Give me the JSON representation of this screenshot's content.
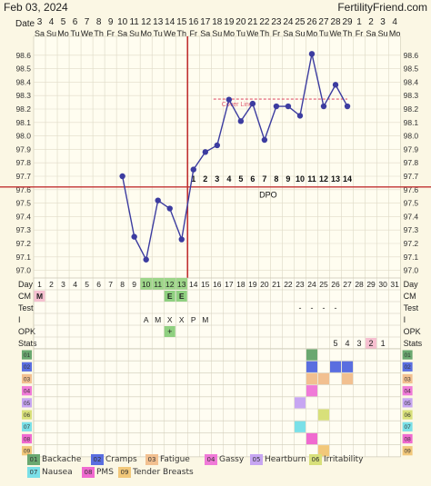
{
  "header": {
    "date": "Feb 03, 2024",
    "site": "FertilityFriend.com"
  },
  "labels": {
    "date_label": "Date",
    "dpo_label": "DPO",
    "cover_line_label": "Cover Line",
    "row_day": "Day",
    "row_cm": "CM",
    "row_test": "Test",
    "row_i": "I",
    "row_opk": "OPK",
    "row_stats": "Stats"
  },
  "colors": {
    "temp_line": "#3c3ca0",
    "ovulation_line": "#c03030",
    "cover_line": "#e05a70",
    "grid_bg": "#fffdf0",
    "header_bg": "#fbf7e4"
  },
  "chart_data": {
    "type": "line",
    "x_dates": [
      3,
      4,
      5,
      6,
      7,
      8,
      9,
      10,
      11,
      12,
      13,
      14,
      15,
      16,
      17,
      18,
      19,
      20,
      21,
      22,
      23,
      24,
      25,
      26,
      27,
      28,
      29,
      1,
      2,
      3,
      4
    ],
    "x_weekdays": [
      "Sa",
      "Su",
      "Mo",
      "Tu",
      "We",
      "Th",
      "Fr",
      "Sa",
      "Su",
      "Mo",
      "Tu",
      "We",
      "Th",
      "Fr",
      "Sa",
      "Su",
      "Mo",
      "Tu",
      "We",
      "Th",
      "Fr",
      "Sa",
      "Su",
      "Mo",
      "Tu",
      "We",
      "Th",
      "Fr",
      "Sa",
      "Su",
      "Mo"
    ],
    "cycle_days": [
      1,
      2,
      3,
      4,
      5,
      6,
      7,
      8,
      9,
      10,
      11,
      12,
      13,
      14,
      15,
      16,
      17,
      18,
      19,
      20,
      21,
      22,
      23,
      24,
      25,
      26,
      27,
      28,
      29,
      30,
      31
    ],
    "y_ticks": [
      97.0,
      97.1,
      97.2,
      97.3,
      97.4,
      97.5,
      97.6,
      97.7,
      97.8,
      97.9,
      98.0,
      98.1,
      98.2,
      98.3,
      98.4,
      98.5,
      98.6
    ],
    "ylim": [
      96.95,
      98.7
    ],
    "temperatures": [
      {
        "day": 8,
        "temp": 97.7
      },
      {
        "day": 9,
        "temp": 97.25
      },
      {
        "day": 10,
        "temp": 97.08
      },
      {
        "day": 11,
        "temp": 97.52
      },
      {
        "day": 12,
        "temp": 97.46
      },
      {
        "day": 13,
        "temp": 97.23
      },
      {
        "day": 14,
        "temp": 97.75
      },
      {
        "day": 15,
        "temp": 97.88
      },
      {
        "day": 16,
        "temp": 97.93
      },
      {
        "day": 17,
        "temp": 98.27
      },
      {
        "day": 18,
        "temp": 98.11
      },
      {
        "day": 19,
        "temp": 98.24
      },
      {
        "day": 20,
        "temp": 97.97
      },
      {
        "day": 21,
        "temp": 98.22
      },
      {
        "day": 22,
        "temp": 98.22
      },
      {
        "day": 23,
        "temp": 98.15
      },
      {
        "day": 24,
        "temp": 98.61
      },
      {
        "day": 25,
        "temp": 98.22
      },
      {
        "day": 26,
        "temp": 98.38
      },
      {
        "day": 27,
        "temp": 98.22
      }
    ],
    "ovulation_day": 13,
    "coverline_temp": 97.62,
    "coverline_short": {
      "from_day": 16,
      "to_day": 27,
      "temp": 98.22
    },
    "dpo_labels": [
      {
        "day": 14,
        "label": "1"
      },
      {
        "day": 15,
        "label": "2"
      },
      {
        "day": 16,
        "label": "3"
      },
      {
        "day": 17,
        "label": "4"
      },
      {
        "day": 18,
        "label": "5"
      },
      {
        "day": 19,
        "label": "6"
      },
      {
        "day": 20,
        "label": "7"
      },
      {
        "day": 21,
        "label": "8"
      },
      {
        "day": 22,
        "label": "9"
      },
      {
        "day": 23,
        "label": "10"
      },
      {
        "day": 24,
        "label": "11"
      },
      {
        "day": 25,
        "label": "12"
      },
      {
        "day": 26,
        "label": "13"
      },
      {
        "day": 27,
        "label": "14"
      }
    ],
    "green_days": [
      10,
      11,
      12,
      13
    ],
    "cm": [
      {
        "day": 1,
        "label": "M",
        "style": "pink"
      },
      {
        "day": 12,
        "label": "E",
        "style": "green"
      },
      {
        "day": 13,
        "label": "E",
        "style": "green"
      }
    ],
    "test": [
      {
        "day": 23,
        "label": "-"
      },
      {
        "day": 24,
        "label": "-"
      },
      {
        "day": 25,
        "label": "-"
      },
      {
        "day": 26,
        "label": "-"
      }
    ],
    "intercourse": [
      {
        "day": 10,
        "label": "A"
      },
      {
        "day": 11,
        "label": "M"
      },
      {
        "day": 12,
        "label": "X"
      },
      {
        "day": 13,
        "label": "X"
      },
      {
        "day": 14,
        "label": "P"
      },
      {
        "day": 15,
        "label": "M"
      }
    ],
    "opk": [
      {
        "day": 12,
        "label": "+"
      }
    ],
    "stats": [
      {
        "day": 26,
        "label": "5",
        "hl": false
      },
      {
        "day": 27,
        "label": "4",
        "hl": false
      },
      {
        "day": 28,
        "label": "3",
        "hl": false
      },
      {
        "day": 29,
        "label": "2",
        "hl": true
      },
      {
        "day": 30,
        "label": "1",
        "hl": false
      }
    ],
    "symptom_rows": [
      {
        "code": "01",
        "color": "#6aa870",
        "days": [
          24
        ]
      },
      {
        "code": "02",
        "color": "#5a6ee0",
        "days": [
          24,
          26,
          27
        ]
      },
      {
        "code": "03",
        "color": "#f2c090",
        "days": [
          24,
          25,
          27
        ]
      },
      {
        "code": "04",
        "color": "#f07ad8",
        "days": [
          24
        ]
      },
      {
        "code": "05",
        "color": "#c7a6f2",
        "days": [
          23
        ]
      },
      {
        "code": "06",
        "color": "#d8e07a",
        "days": [
          25
        ]
      },
      {
        "code": "07",
        "color": "#7ae0e8",
        "days": [
          23
        ]
      },
      {
        "code": "08",
        "color": "#f06ad0",
        "days": [
          24
        ]
      },
      {
        "code": "09",
        "color": "#f2c87a",
        "days": [
          25
        ]
      }
    ]
  },
  "legend": [
    {
      "code": "01",
      "label": "Backache",
      "color": "#6aa870"
    },
    {
      "code": "02",
      "label": "Cramps",
      "color": "#5a6ee0"
    },
    {
      "code": "03",
      "label": "Fatigue",
      "color": "#f2c090"
    },
    {
      "code": "04",
      "label": "Gassy",
      "color": "#f07ad8"
    },
    {
      "code": "05",
      "label": "Heartburn",
      "color": "#c7a6f2"
    },
    {
      "code": "06",
      "label": "Irritability",
      "color": "#d8e07a"
    },
    {
      "code": "07",
      "label": "Nausea",
      "color": "#7ae0e8"
    },
    {
      "code": "08",
      "label": "PMS",
      "color": "#f06ad0"
    },
    {
      "code": "09",
      "label": "Tender Breasts",
      "color": "#f2c87a"
    }
  ]
}
